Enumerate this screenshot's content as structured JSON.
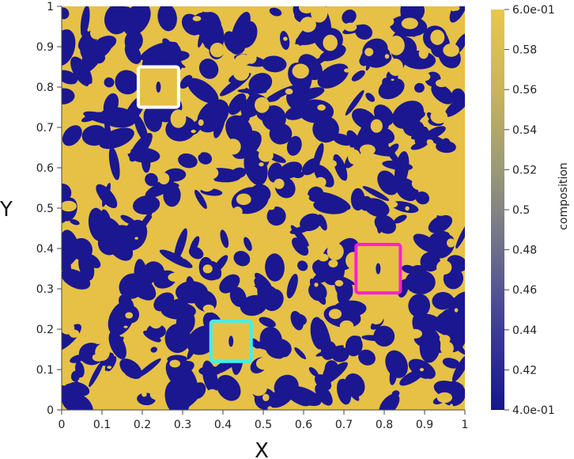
{
  "chart_data": {
    "type": "heatmap",
    "title": "",
    "xlabel": "X",
    "ylabel": "Y",
    "xlim": [
      0,
      1
    ],
    "ylim": [
      0,
      1
    ],
    "x_ticks": [
      "0",
      "0.1",
      "0.2",
      "0.3",
      "0.4",
      "0.5",
      "0.6",
      "0.7",
      "0.8",
      "0.9",
      "1"
    ],
    "y_ticks": [
      "0",
      "0.1",
      "0.2",
      "0.3",
      "0.4",
      "0.5",
      "0.6",
      "0.7",
      "0.8",
      "0.9",
      "1"
    ],
    "x_tick_values": [
      0,
      0.1,
      0.2,
      0.3,
      0.4,
      0.5,
      0.6,
      0.7,
      0.8,
      0.9,
      1
    ],
    "y_tick_values": [
      0,
      0.1,
      0.2,
      0.3,
      0.4,
      0.5,
      0.6,
      0.7,
      0.8,
      0.9,
      1
    ],
    "field_colors": {
      "low": "#1a1791",
      "high": "#e6c146"
    },
    "colorbar": {
      "title": "composition",
      "range": [
        0.4,
        0.6
      ],
      "labels": [
        "6.0e-01",
        "0.58",
        "0.56",
        "0.54",
        "0.52",
        "0.5",
        "0.48",
        "0.46",
        "0.44",
        "0.42",
        "4.0e-01"
      ],
      "label_values": [
        0.6,
        0.58,
        0.56,
        0.54,
        0.52,
        0.5,
        0.48,
        0.46,
        0.44,
        0.42,
        0.4
      ],
      "gradient": [
        "#e8c84b",
        "#c9b45a",
        "#9a9a78",
        "#6e6e8c",
        "#3c3c9a",
        "#15158f"
      ]
    },
    "annotation_boxes": [
      {
        "color": "#ffffff",
        "x_range": [
          0.19,
          0.29
        ],
        "y_range": [
          0.75,
          0.85
        ]
      },
      {
        "color": "#ff1fd2",
        "x_range": [
          0.73,
          0.84
        ],
        "y_range": [
          0.29,
          0.41
        ]
      },
      {
        "color": "#3ff0ee",
        "x_range": [
          0.37,
          0.47
        ],
        "y_range": [
          0.12,
          0.22
        ]
      }
    ]
  }
}
